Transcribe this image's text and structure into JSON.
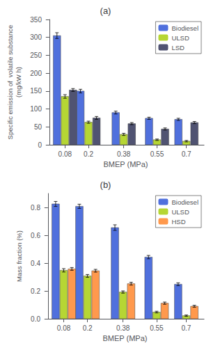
{
  "chart_data": [
    {
      "type": "bar",
      "title": "(a)",
      "xlabel": "BMEP (MPa)",
      "ylabel": "Specific emission of  volatile substance\n(mg/kW h)",
      "x": [
        0.08,
        0.2,
        0.38,
        0.55,
        0.7
      ],
      "xlim": [
        -0.01,
        0.79
      ],
      "xticks": [
        0.08,
        0.2,
        0.38,
        0.55,
        0.7
      ],
      "ylim": [
        0,
        350
      ],
      "yticks": [
        0,
        50,
        100,
        150,
        200,
        250,
        300,
        350
      ],
      "grid": false,
      "legend": "upper right",
      "series": [
        {
          "name": "Biodiesel",
          "values": [
            305,
            150,
            90,
            74,
            71
          ],
          "errors": [
            8,
            5,
            4,
            3,
            3
          ]
        },
        {
          "name": "ULSD",
          "values": [
            135,
            63,
            29,
            14,
            10
          ],
          "errors": [
            5,
            3,
            3,
            2,
            2
          ]
        },
        {
          "name": "LSD",
          "values": [
            153,
            75,
            59,
            44,
            62
          ],
          "errors": [
            4,
            4,
            3,
            3,
            3
          ]
        }
      ]
    },
    {
      "type": "bar",
      "title": "(b)",
      "xlabel": "BMEP (MPa)",
      "ylabel": "Mass fraction (%)",
      "x": [
        0.08,
        0.2,
        0.38,
        0.55,
        0.7
      ],
      "xlim": [
        -0.01,
        0.79
      ],
      "xticks": [
        0.08,
        0.2,
        0.38,
        0.55,
        0.7
      ],
      "ylim": [
        0,
        0.9
      ],
      "yticks": [
        {
          "value": 0.0,
          "label": "0.0"
        },
        0.2,
        0.4,
        0.6,
        0.8
      ],
      "grid": false,
      "legend": "upper right",
      "series": [
        {
          "name": "Biodiesel",
          "values": [
            0.825,
            0.808,
            0.655,
            0.443,
            0.248
          ],
          "errors": [
            0.018,
            0.015,
            0.02,
            0.012,
            0.01
          ]
        },
        {
          "name": "ULSD",
          "values": [
            0.348,
            0.308,
            0.192,
            0.048,
            0.022
          ],
          "errors": [
            0.012,
            0.01,
            0.008,
            0.006,
            0.005
          ]
        },
        {
          "name": "HSD",
          "values": [
            0.358,
            0.345,
            0.252,
            0.112,
            0.09
          ],
          "errors": [
            0.01,
            0.01,
            0.01,
            0.008,
            0.007
          ]
        }
      ]
    }
  ]
}
